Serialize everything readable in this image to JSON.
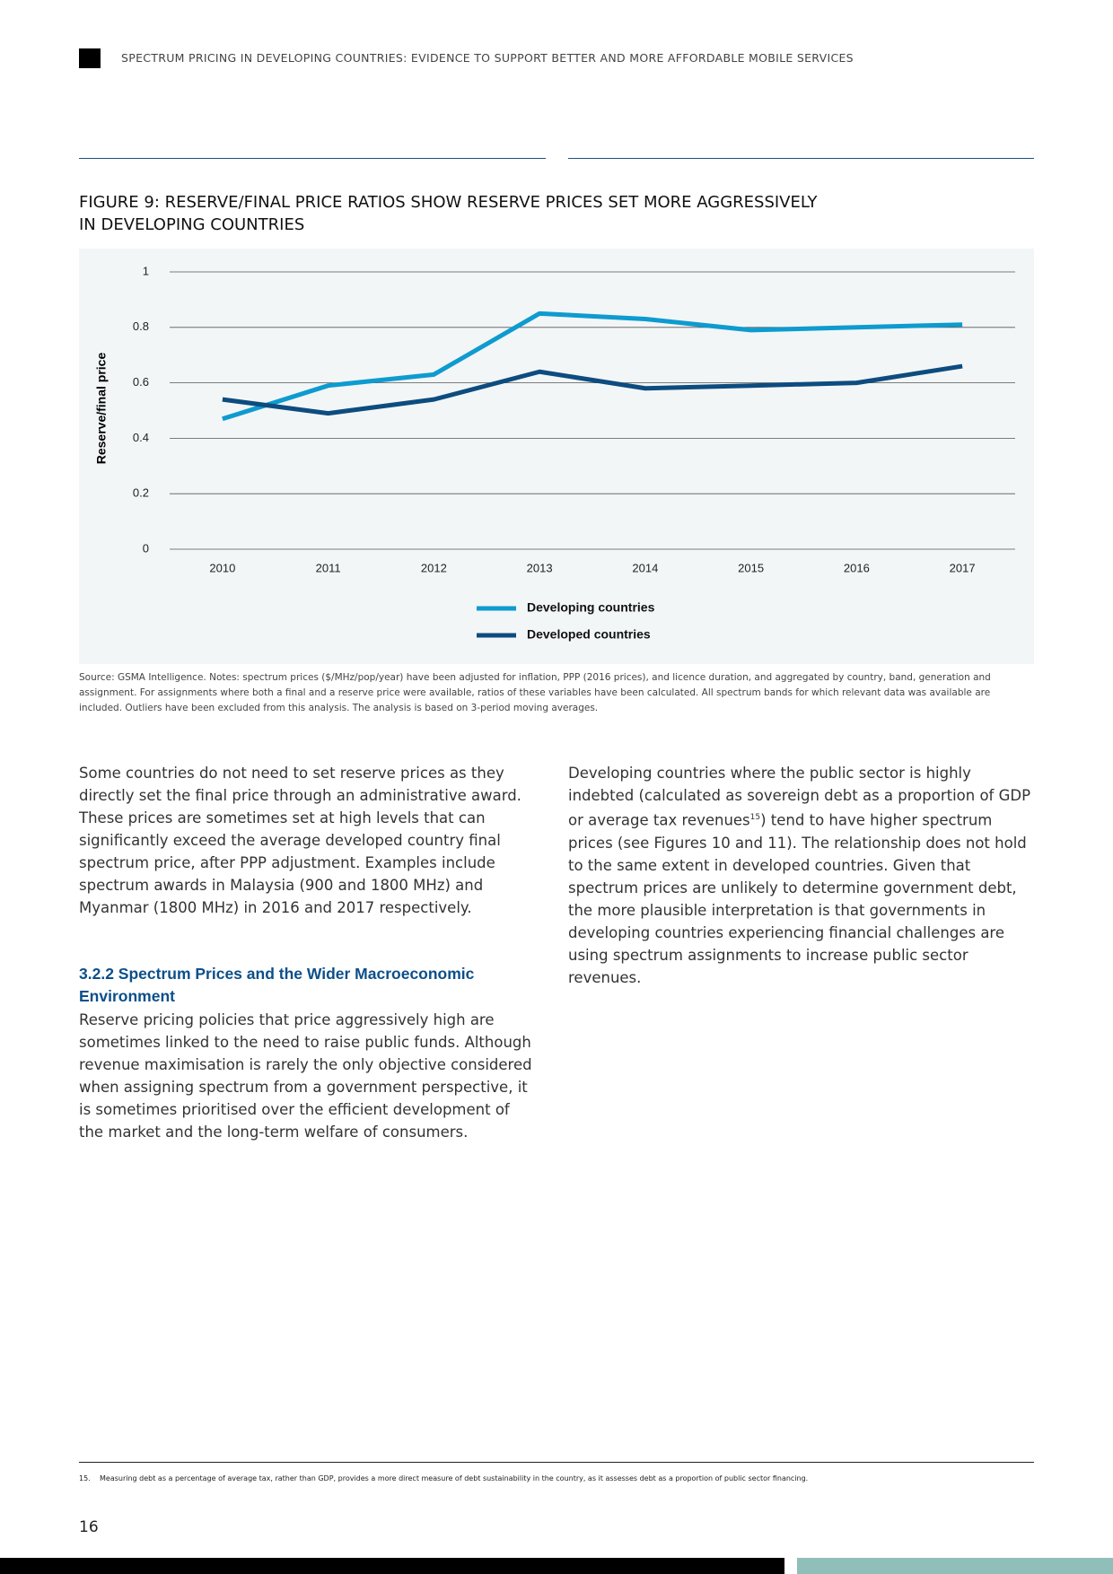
{
  "header": {
    "title": "SPECTRUM PRICING IN DEVELOPING COUNTRIES: EVIDENCE TO SUPPORT BETTER AND MORE AFFORDABLE MOBILE SERVICES"
  },
  "figure": {
    "title_line1": "FIGURE 9: RESERVE/FINAL PRICE RATIOS SHOW RESERVE PRICES SET MORE AGGRESSIVELY",
    "title_line2": "IN DEVELOPING COUNTRIES",
    "source": "Source: GSMA Intelligence. Notes: spectrum prices ($/MHz/pop/year) have been adjusted for inflation, PPP (2016 prices), and licence duration, and aggregated by country, band, generation and assignment. For assignments where both a final and a reserve price were available, ratios of these variables have been calculated. All spectrum bands for which relevant data was available are included. Outliers have been excluded from this analysis. The analysis is based on 3-period moving averages."
  },
  "chart_data": {
    "type": "line",
    "y_label": "Reserve/final price",
    "categories": [
      "2010",
      "2011",
      "2012",
      "2013",
      "2014",
      "2015",
      "2016",
      "2017"
    ],
    "series": [
      {
        "name": "Developing countries",
        "color": "#0e9bcf",
        "values": [
          0.47,
          0.59,
          0.63,
          0.85,
          0.83,
          0.79,
          0.8,
          0.81
        ]
      },
      {
        "name": "Developed countries",
        "color": "#0d4c7f",
        "values": [
          0.54,
          0.49,
          0.54,
          0.64,
          0.58,
          0.59,
          0.6,
          0.66
        ]
      }
    ],
    "ylim": [
      0,
      1
    ],
    "yticks": [
      0,
      0.2,
      0.4,
      0.6,
      0.8,
      1
    ],
    "grid": true
  },
  "body": {
    "left_paragraph": "Some countries do not need to set reserve prices as they directly set the final price through an administrative award. These prices are sometimes set at high levels that can significantly exceed the average developed country final spectrum price, after PPP adjustment. Examples include spectrum awards in Malaysia (900 and 1800 MHz) and Myanmar (1800 MHz) in 2016 and 2017 respectively.",
    "heading": "3.2.2 Spectrum Prices and the Wider Macroeconomic Environment",
    "left_paragraph2": "Reserve pricing policies that price aggressively high are sometimes linked to the need to raise public funds. Although revenue maximisation is rarely the only objective considered when assigning spectrum from a government perspective, it is sometimes prioritised over the efficient development of the market and the long-term welfare of consumers.",
    "right_paragraph": [
      "Developing countries where the public sector is highly indebted (calculated as sovereign debt as a proportion of GDP or average tax revenues",
      "15",
      ") tend to have higher spectrum prices (see Figures 10 and 11). The relationship does not hold to the same extent in developed countries. Given that spectrum prices are unlikely to determine government debt, the more plausible interpretation is that governments in developing countries experiencing financial challenges are using spectrum assignments to increase public sector revenues."
    ]
  },
  "footnote": {
    "number": "15.",
    "text": "Measuring debt as a percentage of average tax, rather than GDP, provides a more direct measure of debt sustainability in the country, as it assesses debt as a proportion of public sector financing."
  },
  "page_number": "16"
}
